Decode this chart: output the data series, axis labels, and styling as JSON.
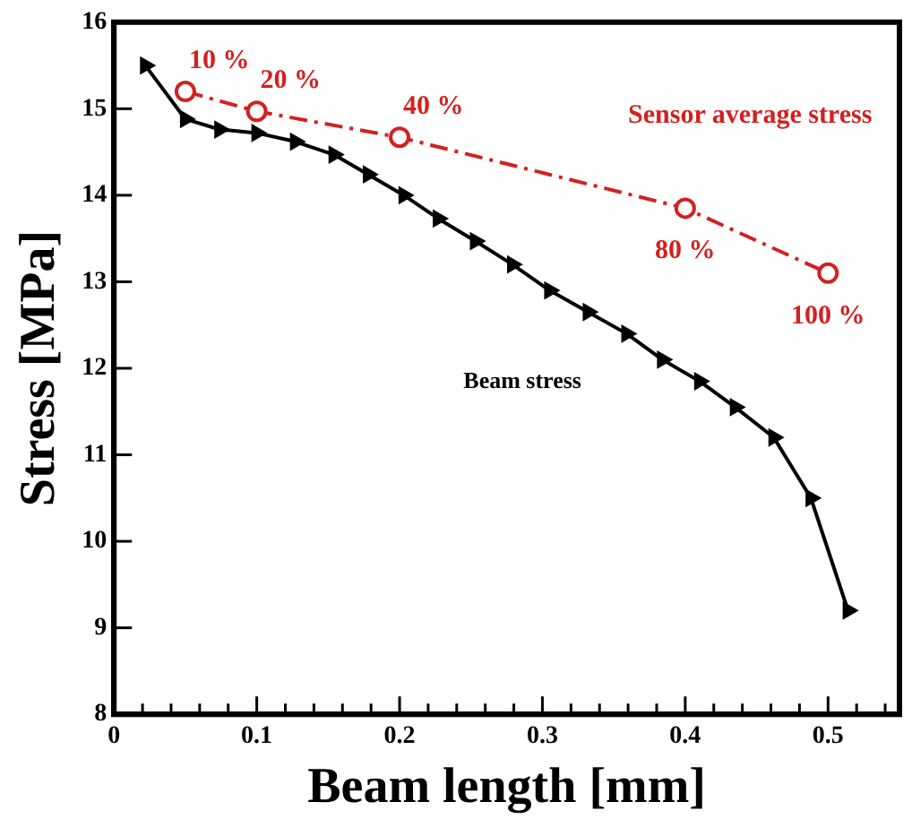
{
  "chart_data": {
    "type": "line",
    "xlabel": "Beam length [mm]",
    "ylabel": "Stress [MPa]",
    "xlim": [
      0,
      0.55
    ],
    "ylim": [
      8,
      16
    ],
    "xticks": [
      0,
      {
        "value": 0.02,
        "label": null
      },
      {
        "value": 0.04,
        "label": null
      },
      {
        "value": 0.06,
        "label": null
      },
      {
        "value": 0.08,
        "label": null
      },
      0.1,
      {
        "value": 0.12,
        "label": null
      },
      {
        "value": 0.14,
        "label": null
      },
      {
        "value": 0.16,
        "label": null
      },
      {
        "value": 0.18,
        "label": null
      },
      0.2,
      {
        "value": 0.22,
        "label": null
      },
      {
        "value": 0.24,
        "label": null
      },
      {
        "value": 0.26,
        "label": null
      },
      {
        "value": 0.28,
        "label": null
      },
      0.3,
      {
        "value": 0.32,
        "label": null
      },
      {
        "value": 0.34,
        "label": null
      },
      {
        "value": 0.36,
        "label": null
      },
      {
        "value": 0.38,
        "label": null
      },
      0.4,
      {
        "value": 0.42,
        "label": null
      },
      {
        "value": 0.44,
        "label": null
      },
      {
        "value": 0.46,
        "label": null
      },
      {
        "value": 0.48,
        "label": null
      },
      0.5,
      {
        "value": 0.52,
        "label": null
      },
      {
        "value": 0.54,
        "label": null
      }
    ],
    "yticks": [
      8,
      9,
      10,
      11,
      12,
      13,
      14,
      15,
      16
    ],
    "grid": false,
    "legend": false,
    "series": [
      {
        "name": "Beam stress",
        "color": "#000000",
        "marker": "triangle",
        "line_style": "solid",
        "x": [
          0.022,
          0.05,
          0.074,
          0.1,
          0.127,
          0.154,
          0.178,
          0.203,
          0.227,
          0.253,
          0.279,
          0.305,
          0.332,
          0.359,
          0.384,
          0.41,
          0.435,
          0.462,
          0.488,
          0.514
        ],
        "values": [
          15.5,
          14.88,
          14.76,
          14.72,
          14.62,
          14.47,
          14.24,
          14.0,
          13.73,
          13.47,
          13.2,
          12.9,
          12.65,
          12.4,
          12.1,
          11.85,
          11.55,
          11.2,
          10.5,
          9.2
        ]
      },
      {
        "name": "Sensor average stress",
        "color": "#d42020",
        "marker": "circle",
        "line_style": "dashed",
        "x": [
          0.05,
          0.1,
          0.2,
          0.4,
          0.5
        ],
        "values": [
          15.2,
          14.97,
          14.67,
          13.85,
          13.1
        ]
      }
    ],
    "annotations": [
      {
        "text": "10 %",
        "x": 0.05,
        "y": 15.2
      },
      {
        "text": "20 %",
        "x": 0.1,
        "y": 14.97
      },
      {
        "text": "40 %",
        "x": 0.2,
        "y": 14.67
      },
      {
        "text": "80 %",
        "x": 0.4,
        "y": 13.85
      },
      {
        "text": "100 %",
        "x": 0.5,
        "y": 13.1
      }
    ]
  }
}
